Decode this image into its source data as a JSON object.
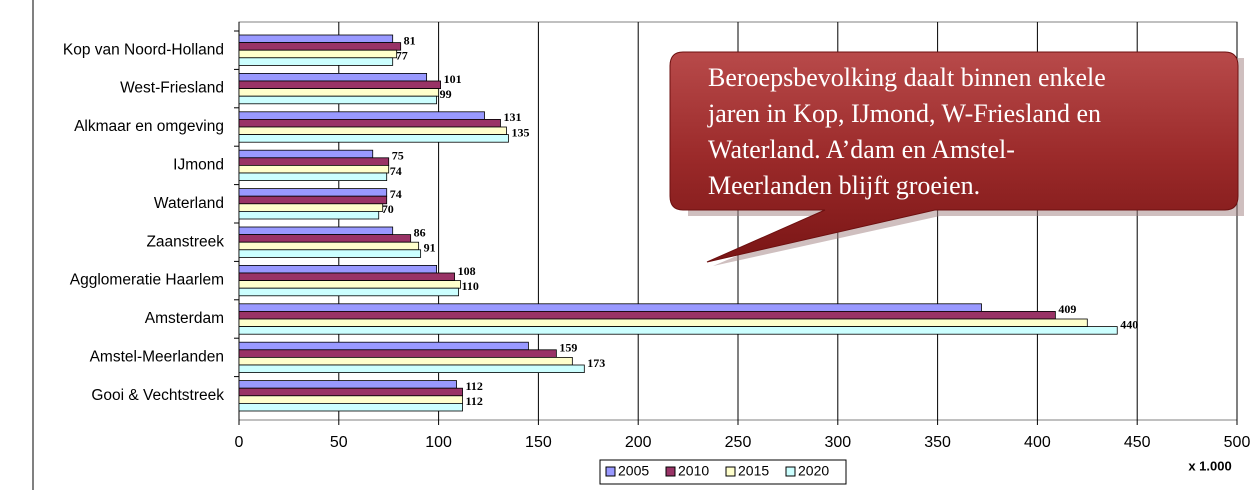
{
  "chart_data": {
    "type": "hbar",
    "categories": [
      "Kop van Noord-Holland",
      "West-Friesland",
      "Alkmaar en omgeving",
      "IJmond",
      "Waterland",
      "Zaanstreek",
      "Agglomeratie Haarlem",
      "Amsterdam",
      "Amstel-Meerlanden",
      "Gooi & Vechtstreek"
    ],
    "series": [
      {
        "name": "2005",
        "color": "#9999ff",
        "values": [
          77,
          94,
          123,
          67,
          74,
          77,
          99,
          372,
          145,
          109
        ]
      },
      {
        "name": "2010",
        "color": "#993366",
        "values": [
          81,
          101,
          131,
          75,
          74,
          86,
          108,
          409,
          159,
          112
        ],
        "show_labels": true
      },
      {
        "name": "2015",
        "color": "#ffffcc",
        "values": [
          79,
          100,
          134,
          75,
          72,
          90,
          111,
          425,
          167,
          112
        ]
      },
      {
        "name": "2020",
        "color": "#ccffff",
        "values": [
          77,
          99,
          135,
          74,
          70,
          91,
          110,
          440,
          173,
          112
        ],
        "show_labels": true
      }
    ],
    "xlim": [
      0,
      500
    ],
    "xticks": [
      0,
      50,
      100,
      150,
      200,
      250,
      300,
      350,
      400,
      450,
      500
    ],
    "grid": true,
    "unit_label": "x 1.000",
    "legend": "bottom",
    "annotation": [
      "Beroepsbevolking daalt binnen enkele",
      "jaren in Kop, IJmond, W-Friesland en",
      "Waterland. A’dam en Amstel-",
      "Meerlanden blijft groeien."
    ]
  }
}
